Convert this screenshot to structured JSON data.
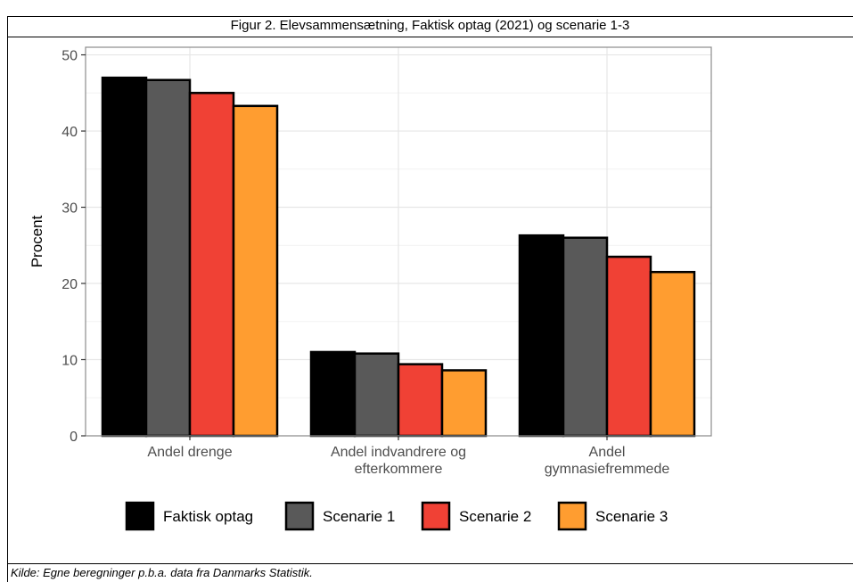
{
  "figure": {
    "title": "Figur 2. Elevsammensætning, Faktisk optag (2021) og scenarie 1-3",
    "source": "Kilde: Egne beregninger p.b.a. data fra Danmarks Statistik."
  },
  "chart_data": {
    "type": "bar",
    "title": "",
    "xlabel": "",
    "ylabel": "Procent",
    "ylim": [
      0,
      51
    ],
    "yticks": [
      0,
      10,
      20,
      30,
      40,
      50
    ],
    "grid": true,
    "legend_position": "bottom",
    "categories": [
      [
        "Andel drenge"
      ],
      [
        "Andel indvandrere og",
        "efterkommere"
      ],
      [
        "Andel",
        "gymnasiefremmede"
      ]
    ],
    "series": [
      {
        "name": "Faktisk optag",
        "color": "#000000",
        "values": [
          47.0,
          11.0,
          26.3
        ]
      },
      {
        "name": "Scenarie 1",
        "color": "#595959",
        "values": [
          46.7,
          10.8,
          26.0
        ]
      },
      {
        "name": "Scenarie 2",
        "color": "#f04135",
        "values": [
          45.0,
          9.4,
          23.5
        ]
      },
      {
        "name": "Scenarie 3",
        "color": "#ff9d30",
        "values": [
          43.3,
          8.6,
          21.5
        ]
      }
    ]
  }
}
